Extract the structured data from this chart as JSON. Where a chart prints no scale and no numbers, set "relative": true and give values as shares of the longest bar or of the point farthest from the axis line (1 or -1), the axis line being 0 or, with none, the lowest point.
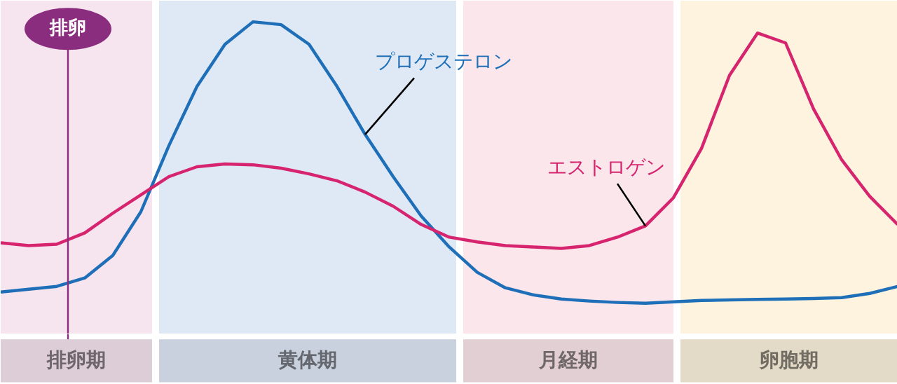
{
  "chart_data": {
    "type": "line",
    "relative": true,
    "tick_labels": false,
    "grid": false,
    "marker": "none",
    "line_style": "solid",
    "categories": [
      null,
      null,
      null,
      null,
      null,
      null,
      null,
      null,
      null,
      null,
      null,
      null,
      null,
      null,
      null,
      null,
      null,
      null,
      null,
      null,
      null,
      null,
      null,
      null,
      null,
      null,
      null,
      null,
      null,
      null,
      null,
      null,
      null
    ],
    "series": [
      {
        "name": "プロゲステロン",
        "color": "#1f6fb8",
        "values": [
          0.04,
          0.05,
          0.06,
          0.09,
          0.17,
          0.325,
          0.56,
          0.77,
          0.92,
          1.0,
          0.99,
          0.92,
          0.77,
          0.6,
          0.45,
          0.31,
          0.2,
          0.11,
          0.055,
          0.03,
          0.015,
          0.008,
          0.003,
          0,
          0.005,
          0.01,
          0.012,
          0.014,
          0.015,
          0.017,
          0.02,
          0.035,
          0.06
        ]
      },
      {
        "name": "エストロゲン",
        "color": "#d6246e",
        "values": [
          0.215,
          0.205,
          0.21,
          0.25,
          0.32,
          0.385,
          0.45,
          0.485,
          0.495,
          0.492,
          0.48,
          0.46,
          0.435,
          0.395,
          0.345,
          0.28,
          0.235,
          0.218,
          0.205,
          0.2,
          0.195,
          0.205,
          0.235,
          0.275,
          0.375,
          0.55,
          0.81,
          0.96,
          0.925,
          0.69,
          0.51,
          0.38,
          0.28
        ]
      }
    ],
    "annotations": [
      "排卵",
      "排卵期",
      "黄体期",
      "月経期",
      "卵胞期"
    ]
  }
}
